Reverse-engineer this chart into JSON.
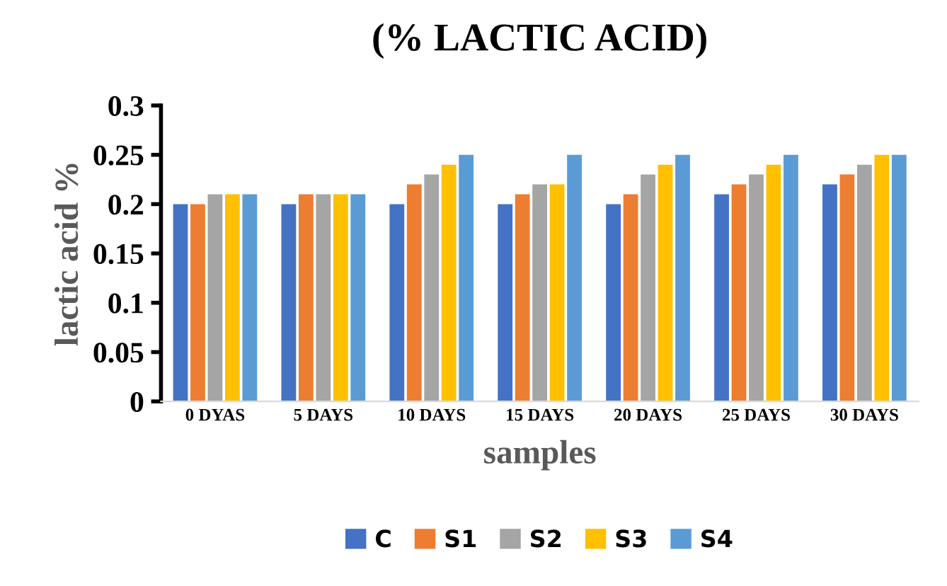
{
  "chart_data": {
    "type": "bar",
    "title": "(% LACTIC ACID)",
    "xlabel": "samples",
    "ylabel": "lactic acid %",
    "categories": [
      "0 DYAS",
      "5 DAYS",
      "10 DAYS",
      "15 DAYS",
      "20 DAYS",
      "25 DAYS",
      "30 DAYS"
    ],
    "series": [
      {
        "name": "C",
        "color": "#4472c4",
        "values": [
          0.2,
          0.2,
          0.2,
          0.2,
          0.2,
          0.21,
          0.22
        ]
      },
      {
        "name": "S1",
        "color": "#ed7d31",
        "values": [
          0.2,
          0.21,
          0.22,
          0.21,
          0.21,
          0.22,
          0.23
        ]
      },
      {
        "name": "S2",
        "color": "#a5a5a5",
        "values": [
          0.21,
          0.21,
          0.23,
          0.22,
          0.23,
          0.23,
          0.24
        ]
      },
      {
        "name": "S3",
        "color": "#ffc000",
        "values": [
          0.21,
          0.21,
          0.24,
          0.22,
          0.24,
          0.24,
          0.25
        ]
      },
      {
        "name": "S4",
        "color": "#5b9bd5",
        "values": [
          0.21,
          0.21,
          0.25,
          0.25,
          0.25,
          0.25,
          0.25
        ]
      }
    ],
    "ylim": [
      0,
      0.3
    ],
    "yticks": [
      0,
      {
        "value": 0.05,
        "label": "0.05"
      },
      {
        "value": 0.1,
        "label": "0.1"
      },
      {
        "value": 0.15,
        "label": "0.15"
      },
      {
        "value": 0.2,
        "label": "0.2"
      },
      {
        "value": 0.25,
        "label": "0.25"
      },
      {
        "value": 0.3,
        "label": "0.3"
      }
    ],
    "grid": false,
    "legend": "bottom"
  }
}
